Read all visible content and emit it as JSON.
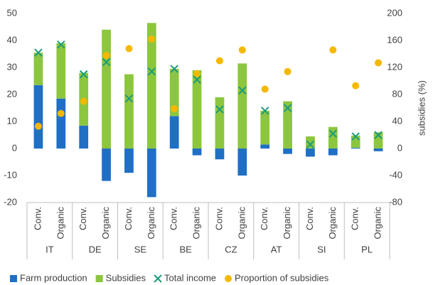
{
  "chart_data": {
    "type": "bar",
    "y2_label": "subsidies (%)",
    "categories": [
      "Conv.",
      "Organic",
      "Conv.",
      "Organic",
      "Conv.",
      "Organic",
      "Conv.",
      "Organic",
      "Conv.",
      "Organic",
      "Conv.",
      "Organic",
      "Conv.",
      "Organic",
      "Conv.",
      "Organic"
    ],
    "groups": [
      "IT",
      "DE",
      "SE",
      "BE",
      "CZ",
      "AT",
      "SI",
      "PL"
    ],
    "series": [
      {
        "name": "Farm production",
        "color": "#1f6fc5",
        "marker": "bar",
        "values": [
          23.5,
          18.5,
          8.5,
          -12,
          -9,
          -18,
          12,
          -2.5,
          -4,
          -10,
          1.5,
          -2,
          -3,
          -2.5,
          0.3,
          -1
        ]
      },
      {
        "name": "Subsidies",
        "color": "#8cc63f",
        "marker": "bar",
        "values": [
          12,
          20.5,
          19.5,
          44,
          27.5,
          46.5,
          17.5,
          29,
          19,
          31.5,
          12.5,
          17.5,
          4.5,
          8,
          4.5,
          6
        ]
      },
      {
        "name": "Total income",
        "color": "#1a9c7a",
        "marker": "x",
        "values": [
          35.5,
          38.5,
          27.5,
          32,
          18.5,
          28.5,
          29.5,
          25.5,
          14.5,
          21.5,
          14,
          15,
          1.5,
          5.5,
          4.5,
          5
        ]
      },
      {
        "name": "Proportion of subsidies",
        "color": "#f5b800",
        "marker": "dot",
        "axis": "y2",
        "values": [
          33,
          52,
          70,
          138,
          148,
          162,
          59,
          111,
          130,
          146,
          88,
          114,
          null,
          146,
          93,
          127
        ]
      }
    ],
    "ylim": [
      -20,
      50
    ],
    "yticks": [
      50,
      40,
      30,
      20,
      10,
      0,
      -10,
      -20
    ],
    "y2lim": [
      -80,
      200
    ],
    "y2ticks": [
      200,
      160,
      120,
      80,
      40,
      0,
      -40,
      -80
    ],
    "legend": "bottom"
  }
}
